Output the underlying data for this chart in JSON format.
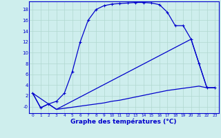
{
  "xlabel": "Graphe des températures (°C)",
  "background_color": "#ceeeed",
  "grid_color": "#b0d8d0",
  "line_color": "#0000cc",
  "spine_color": "#0000cc",
  "xlim": [
    -0.5,
    23.5
  ],
  "ylim": [
    -1.2,
    19.5
  ],
  "xticks": [
    0,
    1,
    2,
    3,
    4,
    5,
    6,
    7,
    8,
    9,
    10,
    11,
    12,
    13,
    14,
    15,
    16,
    17,
    18,
    19,
    20,
    21,
    22,
    23
  ],
  "yticks": [
    0,
    2,
    4,
    6,
    8,
    10,
    12,
    14,
    16,
    18
  ],
  "ytick_labels": [
    "-0",
    "2",
    "4",
    "6",
    "8",
    "10",
    "12",
    "14",
    "16",
    "18"
  ],
  "curve1_x": [
    0,
    1,
    2,
    3,
    4,
    5,
    6,
    7,
    8,
    9,
    10,
    11,
    12,
    13,
    14,
    15,
    16,
    17,
    18,
    19,
    20,
    21,
    22,
    23
  ],
  "curve1_y": [
    2.5,
    -0.2,
    0.5,
    1.0,
    2.5,
    6.5,
    12.0,
    16.0,
    18.0,
    18.7,
    19.0,
    19.1,
    19.2,
    19.3,
    19.3,
    19.2,
    18.9,
    17.5,
    15.0,
    15.0,
    12.5,
    8.0,
    3.5,
    3.5
  ],
  "curve2_x": [
    0,
    1,
    2,
    3,
    4,
    5,
    6,
    7,
    8,
    9,
    10,
    11,
    12,
    13,
    14,
    15,
    16,
    17,
    18,
    19,
    20,
    21,
    22,
    23
  ],
  "curve2_y": [
    2.5,
    -0.2,
    0.5,
    -0.5,
    -0.3,
    -0.1,
    0.1,
    0.3,
    0.5,
    0.7,
    1.0,
    1.2,
    1.5,
    1.8,
    2.1,
    2.4,
    2.7,
    3.0,
    3.2,
    3.4,
    3.6,
    3.8,
    3.5,
    3.5
  ],
  "curve3_x": [
    0,
    3,
    20,
    21,
    22,
    23
  ],
  "curve3_y": [
    2.5,
    -0.5,
    12.5,
    8.0,
    3.5,
    3.5
  ]
}
